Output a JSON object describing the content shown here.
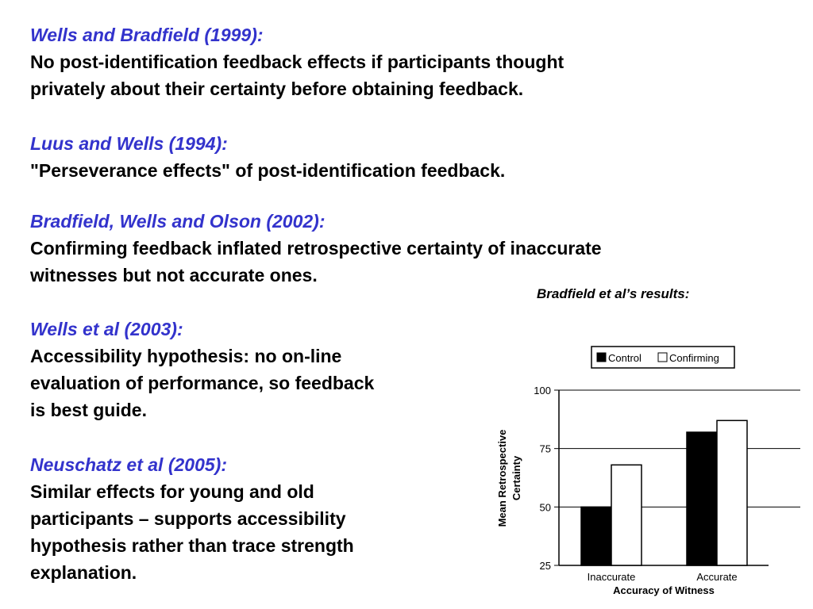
{
  "entries": [
    {
      "citation": "Wells and Bradfield (1999):",
      "lines": [
        "No post-identification feedback effects if participants thought",
        "privately about their certainty before obtaining feedback."
      ]
    },
    {
      "citation": "Luus and Wells (1994):",
      "lines": [
        "\"Perseverance effects\" of post-identification feedback."
      ]
    },
    {
      "citation": "Bradfield, Wells and Olson (2002):",
      "lines": [
        "Confirming feedback inflated retrospective certainty of inaccurate",
        "witnesses but not accurate ones."
      ]
    },
    {
      "citation": "Wells et al (2003):",
      "lines": [
        "Accessibility hypothesis: no on-line",
        "evaluation of performance, so feedback",
        "is best guide."
      ]
    },
    {
      "citation": "Neuschatz et al (2005):",
      "lines": [
        "Similar effects for young and old",
        "participants – supports accessibility",
        "hypothesis rather than trace strength",
        "explanation."
      ]
    }
  ],
  "results_caption": "Bradfield et al’s results:",
  "colors": {
    "citation": "#3333cc",
    "body_text": "#000000",
    "control_bar": "#000000",
    "confirming_bar": "#ffffff"
  },
  "chart_data": {
    "type": "bar",
    "categories": [
      "Inaccurate",
      "Accurate"
    ],
    "series": [
      {
        "name": "Control",
        "values": [
          50,
          82
        ]
      },
      {
        "name": "Confirming",
        "values": [
          68,
          87
        ]
      }
    ],
    "xlabel": "Accuracy of Witness",
    "ylabel": "Mean Retrospective Certainty",
    "ylim": [
      25,
      100
    ],
    "yticks": [
      "25",
      "50",
      "75",
      "100"
    ],
    "grid": true,
    "legend": "top"
  }
}
